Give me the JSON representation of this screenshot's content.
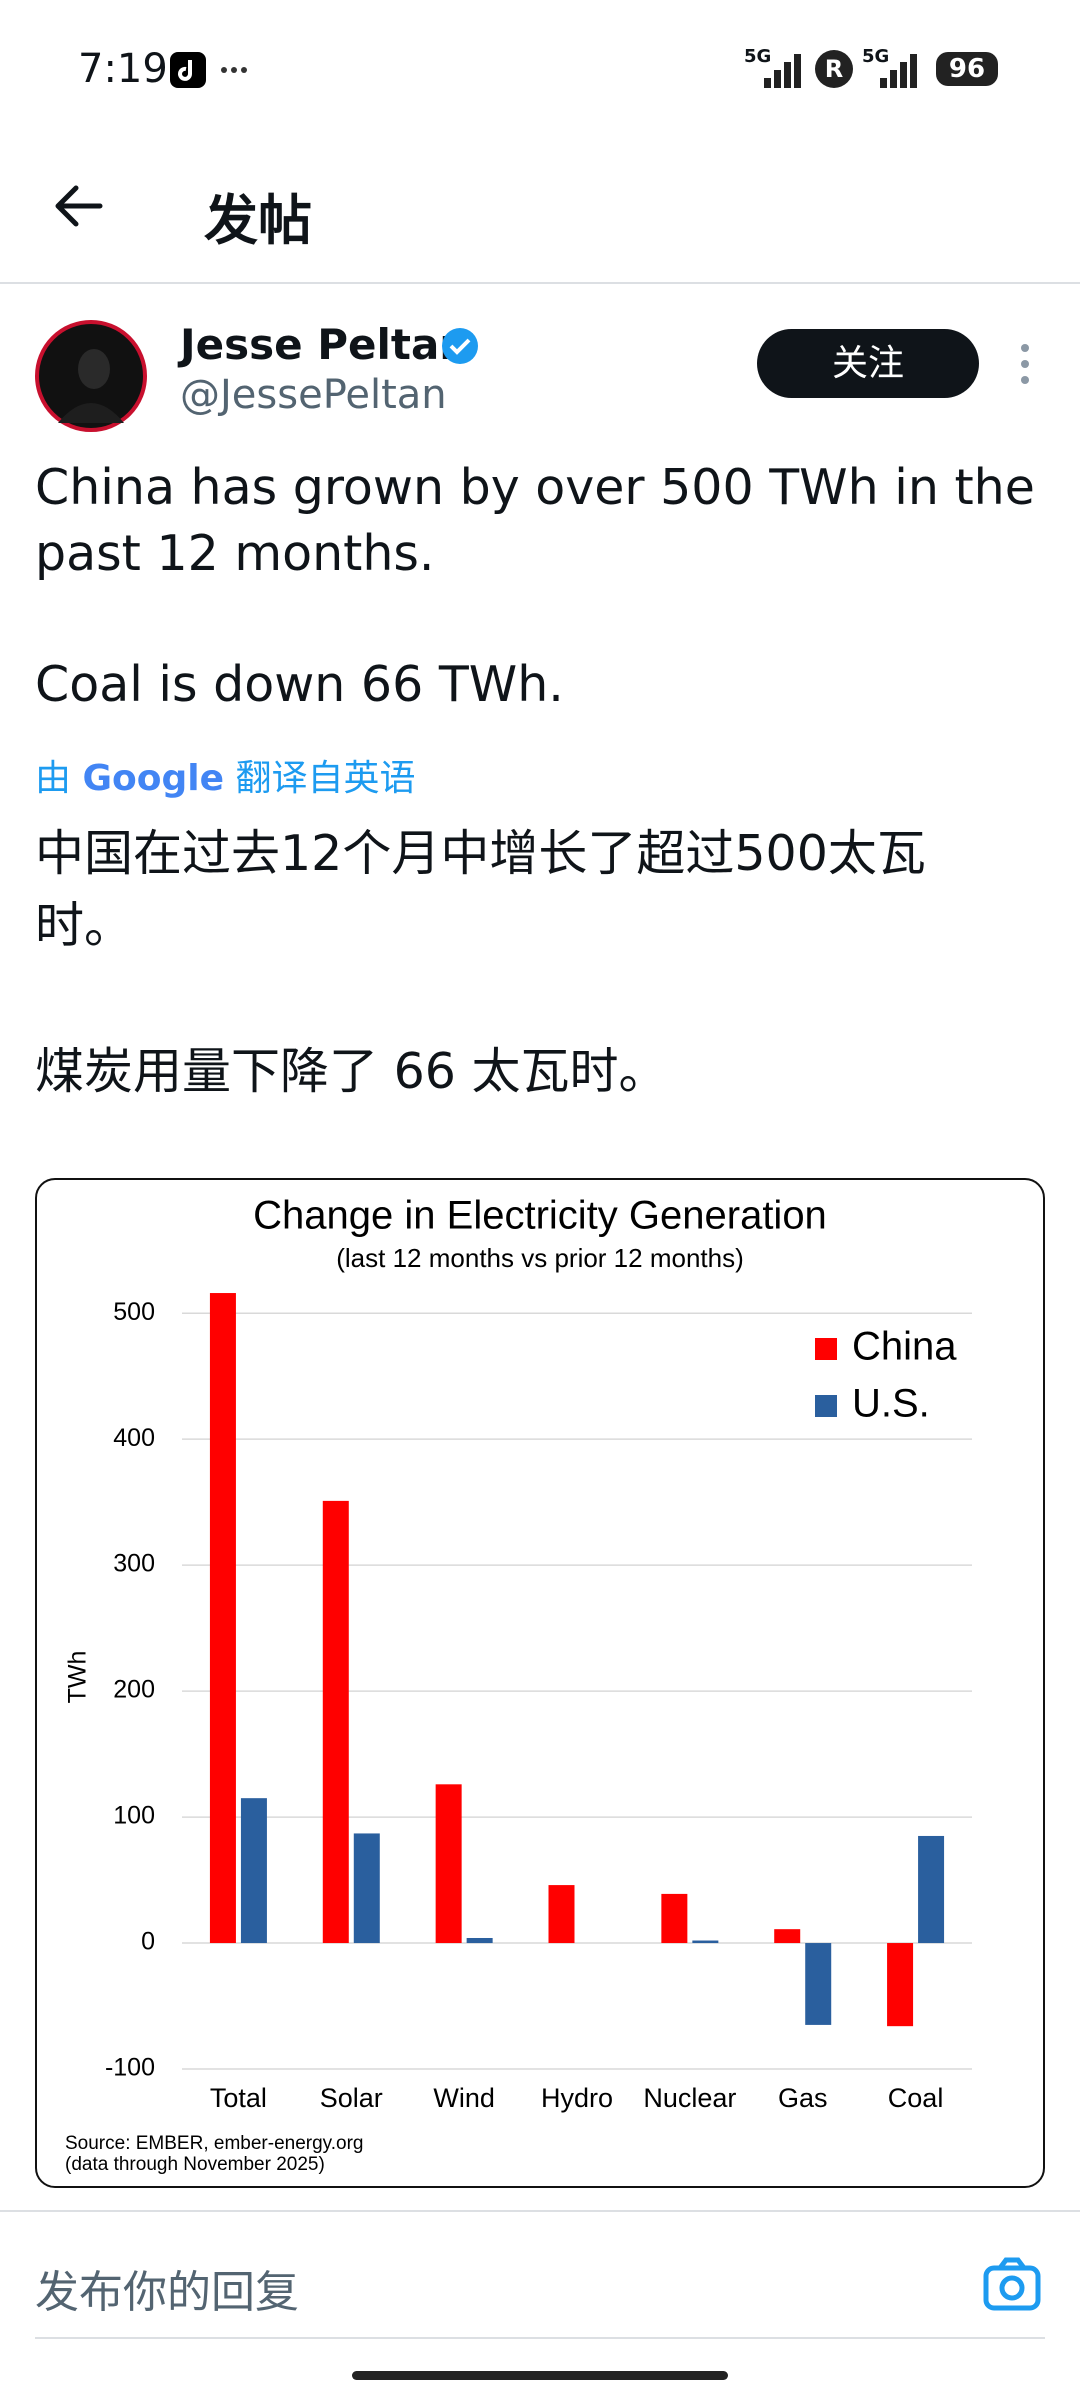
{
  "status_bar": {
    "time": "7:19",
    "network": [
      "5G",
      "5G"
    ],
    "sim": "R",
    "battery": "96"
  },
  "header": {
    "title": "发帖"
  },
  "post": {
    "name": "Jesse Peltan",
    "handle": "@JessePeltan",
    "follow": "关注",
    "text": [
      "China has grown by over 500 TWh in the past 12 months.",
      "Coal is down 66 TWh."
    ],
    "translate": {
      "by": "由",
      "brand": "Google",
      "label": "翻译自英语"
    },
    "translation": [
      "中国在过去12个月中增长了超过500太瓦时。",
      "煤炭用量下降了 66 太瓦时。"
    ]
  },
  "chart_data": {
    "type": "bar",
    "title": "Change in Electricity Generation",
    "subtitle": "(last 12 months vs prior 12 months)",
    "y_label": "TWh",
    "source": [
      "Source: EMBER, ember-energy.org",
      "(data through November 2025)"
    ],
    "categories": [
      "Total",
      "Solar",
      "Wind",
      "Hydro",
      "Nuclear",
      "Gas",
      "Coal"
    ],
    "series": [
      {
        "name": "China",
        "color": "#ff0000",
        "values": [
          516,
          351,
          126,
          46,
          39,
          11,
          -66
        ]
      },
      {
        "name": "U.S.",
        "color": "#2a5f9e",
        "values": [
          115,
          87,
          4,
          0,
          2,
          -65,
          85
        ]
      }
    ],
    "ylim": [
      -100,
      520
    ],
    "yticks": [
      -100,
      0,
      100,
      200,
      300,
      400,
      500
    ],
    "grid": true,
    "legend": "upper right"
  },
  "reply": {
    "placeholder": "发布你的回复"
  }
}
